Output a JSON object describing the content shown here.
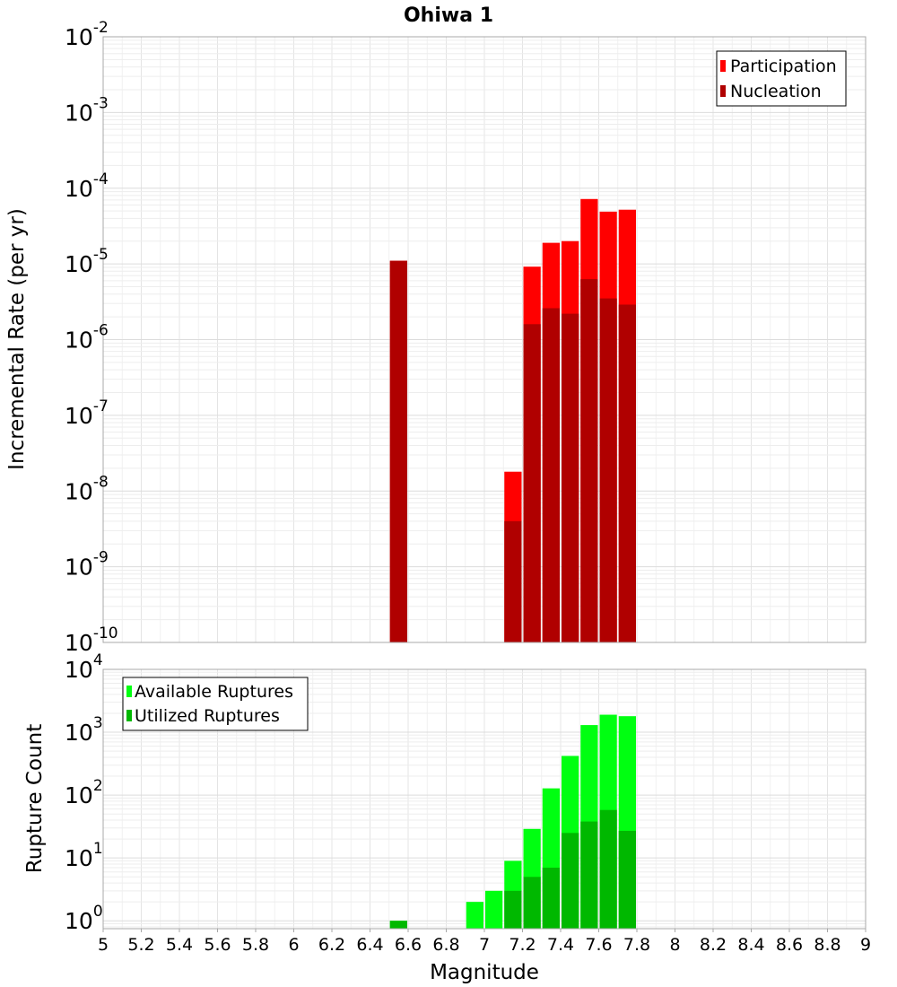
{
  "chart_data": [
    {
      "type": "bar",
      "title": "Ohiwa 1",
      "ylabel": "Incremental Rate (per yr)",
      "xlabel": "",
      "xlim": [
        5,
        9
      ],
      "ylim": [
        1e-10,
        0.01
      ],
      "yscale": "log",
      "grid": true,
      "legend_position": "top-right",
      "bar_width": 0.1,
      "x": [
        6.55,
        7.15,
        7.25,
        7.35,
        7.45,
        7.55,
        7.65,
        7.75
      ],
      "y_tick_exponents": [
        "-10",
        "-9",
        "-8",
        "-7",
        "-6",
        "-5",
        "-4",
        "-3",
        "-2"
      ],
      "series": [
        {
          "name": "Participation",
          "color": "#ff0000",
          "values": [
            1.1e-05,
            1.8e-08,
            9.2e-06,
            1.9e-05,
            2e-05,
            7.2e-05,
            4.9e-05,
            5.2e-05
          ]
        },
        {
          "name": "Nucleation",
          "color": "#b00000",
          "values": [
            1.1e-05,
            4e-09,
            1.6e-06,
            2.6e-06,
            2.2e-06,
            6.3e-06,
            3.5e-06,
            2.9e-06
          ]
        }
      ]
    },
    {
      "type": "bar",
      "title": "",
      "ylabel": "Rupture Count",
      "xlabel": "Magnitude",
      "xlim": [
        5,
        9
      ],
      "ylim": [
        0.75,
        10000
      ],
      "yscale": "log",
      "grid": true,
      "legend_position": "top-left",
      "bar_width": 0.1,
      "x": [
        6.55,
        6.95,
        7.05,
        7.15,
        7.25,
        7.35,
        7.45,
        7.55,
        7.65,
        7.75
      ],
      "x_ticks": [
        "5",
        "5.2",
        "5.4",
        "5.6",
        "5.8",
        "6",
        "6.2",
        "6.4",
        "6.6",
        "6.8",
        "7",
        "7.2",
        "7.4",
        "7.6",
        "7.8",
        "8",
        "8.2",
        "8.4",
        "8.6",
        "8.8",
        "9"
      ],
      "y_tick_exponents": [
        "0",
        "1",
        "2",
        "3",
        "4"
      ],
      "series": [
        {
          "name": "Available Ruptures",
          "color": "#00ff11",
          "values": [
            1,
            2,
            3,
            9,
            29,
            128,
            420,
            1300,
            1900,
            1800
          ]
        },
        {
          "name": "Utilized Ruptures",
          "color": "#00b800",
          "values": [
            1,
            0,
            0,
            3,
            5,
            7,
            25,
            38,
            58,
            27
          ]
        }
      ]
    }
  ]
}
